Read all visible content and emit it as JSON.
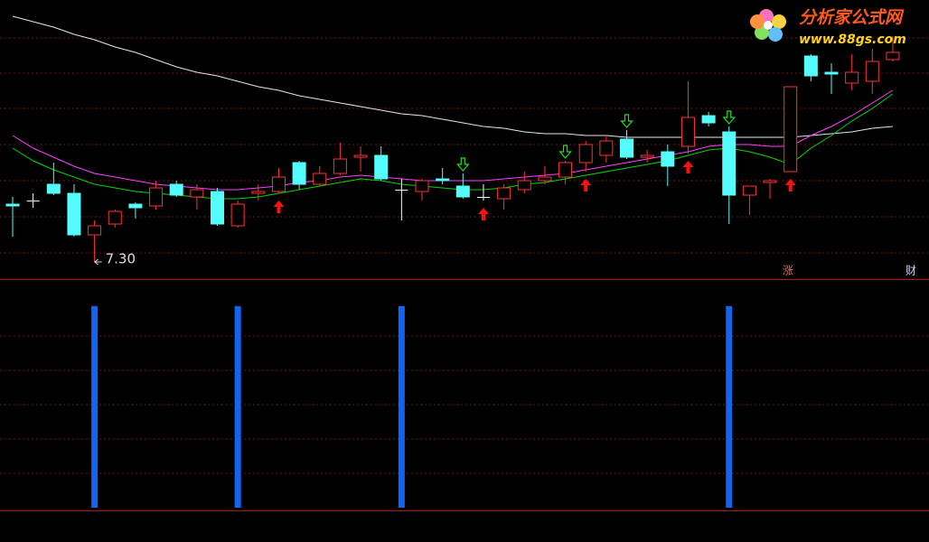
{
  "chart_data": {
    "type": "candlestick",
    "ylim": [
      7.21,
      8.75
    ],
    "up_color": "#ff3232",
    "down_color": "#54fcfc",
    "flat_color": "#ffffff",
    "open": [
      7.62,
      7.64,
      7.73,
      7.68,
      7.45,
      7.51,
      7.62,
      7.61,
      7.73,
      7.66,
      7.69,
      7.5,
      7.68,
      7.69,
      7.85,
      7.73,
      7.79,
      7.88,
      7.89,
      7.7,
      7.69,
      7.76,
      7.72,
      7.66,
      7.65,
      7.7,
      7.75,
      7.77,
      7.85,
      7.89,
      7.98,
      7.88,
      7.91,
      7.94,
      8.11,
      8.02,
      7.67,
      7.74,
      7.8,
      8.44,
      8.35,
      8.29,
      8.3,
      8.42
    ],
    "high": [
      7.66,
      7.68,
      7.85,
      7.73,
      7.53,
      7.59,
      7.63,
      7.75,
      7.75,
      7.73,
      7.71,
      7.64,
      7.73,
      7.82,
      7.86,
      7.83,
      7.96,
      7.94,
      7.94,
      7.76,
      7.76,
      7.82,
      7.79,
      7.73,
      7.73,
      7.8,
      7.83,
      7.86,
      7.97,
      8.0,
      8.03,
      7.92,
      7.95,
      8.3,
      8.13,
      8.05,
      7.72,
      7.76,
      8.27,
      8.45,
      8.4,
      8.45,
      8.48,
      8.55
    ],
    "low": [
      7.44,
      7.6,
      7.67,
      7.44,
      7.3,
      7.49,
      7.54,
      7.59,
      7.66,
      7.59,
      7.5,
      7.49,
      7.64,
      7.68,
      7.7,
      7.72,
      7.78,
      7.8,
      7.75,
      7.53,
      7.64,
      7.73,
      7.65,
      7.64,
      7.59,
      7.68,
      7.73,
      7.73,
      7.8,
      7.85,
      7.87,
      7.85,
      7.72,
      7.9,
      8.05,
      7.51,
      7.56,
      7.65,
      7.8,
      8.3,
      8.23,
      8.25,
      8.23,
      8.41
    ],
    "close": [
      7.61,
      7.64,
      7.68,
      7.45,
      7.5,
      7.58,
      7.6,
      7.71,
      7.67,
      7.7,
      7.51,
      7.62,
      7.69,
      7.77,
      7.73,
      7.79,
      7.87,
      7.89,
      7.76,
      7.7,
      7.75,
      7.75,
      7.66,
      7.66,
      7.71,
      7.75,
      7.77,
      7.85,
      7.95,
      7.97,
      7.88,
      7.89,
      7.83,
      8.1,
      8.07,
      7.67,
      7.72,
      7.75,
      8.27,
      8.33,
      8.34,
      8.35,
      8.41,
      8.46
    ],
    "moving_averages": [
      {
        "color": "#e8e8e8",
        "values": [
          8.66,
          8.63,
          8.6,
          8.56,
          8.53,
          8.49,
          8.46,
          8.42,
          8.38,
          8.35,
          8.33,
          8.3,
          8.27,
          8.25,
          8.22,
          8.2,
          8.18,
          8.16,
          8.14,
          8.12,
          8.11,
          8.09,
          8.07,
          8.05,
          8.04,
          8.02,
          8.01,
          8.01,
          8.0,
          8.0,
          7.99,
          7.99,
          7.99,
          7.99,
          7.99,
          7.99,
          7.99,
          7.99,
          7.99,
          8.0,
          8.01,
          8.02,
          8.04,
          8.05
        ]
      },
      {
        "color": "#ff40ff",
        "values": [
          8.0,
          7.93,
          7.88,
          7.83,
          7.79,
          7.77,
          7.75,
          7.73,
          7.72,
          7.71,
          7.7,
          7.7,
          7.71,
          7.72,
          7.74,
          7.75,
          7.77,
          7.78,
          7.77,
          7.76,
          7.75,
          7.75,
          7.75,
          7.75,
          7.76,
          7.77,
          7.78,
          7.79,
          7.81,
          7.83,
          7.85,
          7.87,
          7.89,
          7.91,
          7.94,
          7.95,
          7.95,
          7.94,
          7.94,
          8.0,
          8.05,
          8.11,
          8.18,
          8.25
        ]
      },
      {
        "color": "#00d800",
        "values": [
          7.93,
          7.86,
          7.81,
          7.77,
          7.73,
          7.71,
          7.69,
          7.68,
          7.67,
          7.66,
          7.65,
          7.65,
          7.66,
          7.68,
          7.7,
          7.72,
          7.74,
          7.76,
          7.75,
          7.73,
          7.72,
          7.71,
          7.7,
          7.7,
          7.71,
          7.73,
          7.74,
          7.76,
          7.78,
          7.8,
          7.82,
          7.84,
          7.86,
          7.89,
          7.92,
          7.93,
          7.91,
          7.88,
          7.84,
          7.93,
          8.0,
          8.08,
          8.15,
          8.23
        ]
      }
    ],
    "low_marker": {
      "index": 4,
      "value": 7.3,
      "label": "7.30"
    },
    "buy_signals": {
      "color": "#ff1010",
      "indices": [
        13,
        23,
        28,
        33,
        38
      ]
    },
    "sell_signals": {
      "color": "#20e020",
      "indices": [
        22,
        27,
        30,
        35
      ]
    },
    "corner_labels": [
      "涨",
      "财"
    ],
    "indicator": {
      "type": "bar",
      "color": "#1464f0",
      "indices": [
        4,
        11,
        19,
        35
      ],
      "values": [
        1,
        1,
        1,
        1
      ],
      "ylim": [
        0,
        1.12
      ]
    }
  },
  "watermark": {
    "title": "分析家公式网",
    "url": "www.88gs.com"
  }
}
